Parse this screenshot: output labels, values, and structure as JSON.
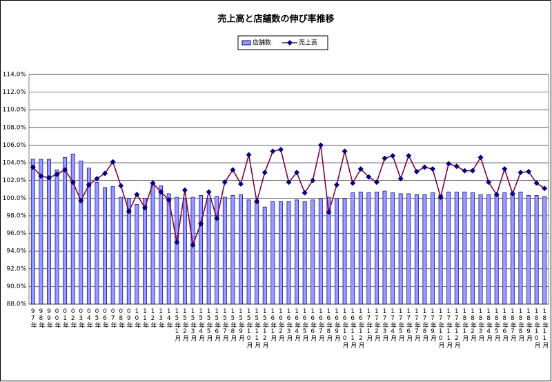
{
  "chart_data": {
    "type": "combo",
    "title": "売上高と店舗数の伸び率推移",
    "categories": [
      "97年",
      "98年",
      "99年",
      "00年",
      "01年",
      "02年",
      "03年",
      "04年",
      "05年",
      "06年",
      "07年",
      "08年",
      "09年",
      "10年",
      "11年",
      "12年",
      "13年",
      "14年",
      "15年1月",
      "15年2月",
      "15年3月",
      "15年4月",
      "15年5月",
      "15年6月",
      "15年7月",
      "15年8月",
      "15年9月",
      "15年10月",
      "15年11月",
      "15年12月",
      "16年1月",
      "16年2月",
      "16年3月",
      "16年4月",
      "16年5月",
      "16年6月",
      "16年7月",
      "16年8月",
      "16年9月",
      "16年10月",
      "16年11月",
      "16年12月",
      "17年1月",
      "17年2月",
      "17年3月",
      "17年4月",
      "17年5月",
      "17年6月",
      "17年7月",
      "17年8月",
      "17年9月",
      "17年10月",
      "17年11月",
      "17年12月",
      "18年1月",
      "18年2月",
      "18年3月",
      "18年4月",
      "18年5月",
      "18年6月",
      "18年7月",
      "18年8月",
      "18年9月",
      "18年10月",
      "18年11月"
    ],
    "series": [
      {
        "name": "店舗数",
        "type": "bar",
        "color": "#9999ff",
        "values": [
          104.4,
          104.4,
          104.4,
          103.2,
          104.6,
          105.0,
          104.2,
          103.4,
          101.8,
          101.2,
          101.3,
          100.1,
          99.9,
          99.3,
          100.0,
          101.7,
          101.4,
          100.5,
          100.1,
          99.9,
          100.1,
          100.3,
          100.0,
          100.2,
          100.1,
          100.3,
          100.4,
          99.8,
          99.8,
          99.0,
          99.6,
          99.6,
          99.6,
          99.8,
          99.6,
          99.8,
          99.9,
          100.1,
          100.0,
          99.9,
          100.6,
          100.7,
          100.6,
          100.7,
          100.8,
          100.6,
          100.5,
          100.5,
          100.4,
          100.4,
          100.6,
          100.4,
          100.7,
          100.7,
          100.7,
          100.6,
          100.4,
          100.4,
          100.5,
          100.6,
          100.5,
          100.7,
          100.3,
          100.3,
          100.2
        ]
      },
      {
        "name": "売上高",
        "type": "line",
        "color": "#800040",
        "marker_color": "#000080",
        "values": [
          103.5,
          102.5,
          102.3,
          102.7,
          103.2,
          101.8,
          99.7,
          101.5,
          102.2,
          102.8,
          104.1,
          101.4,
          98.5,
          100.4,
          98.9,
          101.7,
          100.7,
          99.8,
          95.0,
          100.9,
          94.7,
          97.1,
          100.7,
          97.7,
          101.8,
          103.2,
          101.6,
          104.9,
          99.6,
          102.9,
          105.3,
          105.5,
          101.8,
          102.9,
          100.6,
          102.0,
          106.0,
          98.4,
          101.5,
          105.3,
          101.7,
          103.3,
          102.4,
          101.8,
          104.5,
          104.8,
          102.2,
          104.8,
          103.0,
          103.5,
          103.3,
          100.1,
          103.9,
          103.6,
          103.1,
          103.1,
          104.6,
          101.8,
          100.4,
          103.3,
          100.5,
          102.9,
          103.0,
          101.7,
          101.1
        ]
      }
    ],
    "ylim": [
      88,
      114
    ],
    "yticks": [
      {
        "value": 88,
        "label": "88.0%"
      },
      {
        "value": 90,
        "label": "90.0%"
      },
      {
        "value": 92,
        "label": "92.0%"
      },
      {
        "value": 94,
        "label": "94.0%"
      },
      {
        "value": 96,
        "label": "96.0%"
      },
      {
        "value": 98,
        "label": "98.0%"
      },
      {
        "value": 100,
        "label": "100.0%"
      },
      {
        "value": 102,
        "label": "102.0%"
      },
      {
        "value": 104,
        "label": "104.0%"
      },
      {
        "value": 106,
        "label": "106.0%"
      },
      {
        "value": 108,
        "label": "108.0%"
      },
      {
        "value": 110,
        "label": "110.0%"
      },
      {
        "value": 112,
        "label": "112.0%"
      },
      {
        "value": 114,
        "label": "114.0%"
      }
    ],
    "grid": true,
    "legend": "top"
  }
}
